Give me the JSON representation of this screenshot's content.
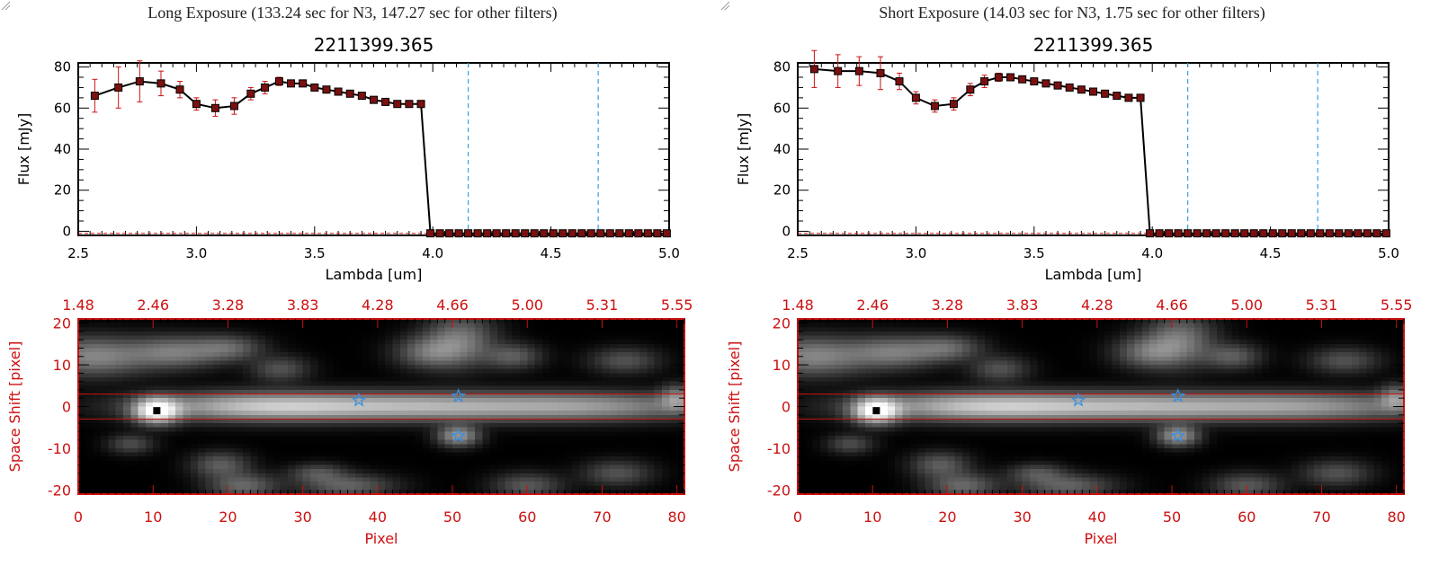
{
  "chart_data": [
    {
      "panel_title": "Long Exposure (133.24 sec for N3, 147.27 sec for other filters)",
      "spectrum": {
        "type": "line",
        "title": "2211399.365",
        "xlabel": "Lambda [um]",
        "ylabel": "Flux [mJy]",
        "xlim": [
          2.5,
          5.0
        ],
        "ylim": [
          -2,
          82
        ],
        "x_ticks": [
          "2.5",
          "3.0",
          "3.5",
          "4.0",
          "4.5",
          "5.0"
        ],
        "y_ticks": [
          "0",
          "20",
          "40",
          "60",
          "80"
        ],
        "vlines": [
          4.15,
          4.7
        ],
        "series": [
          {
            "x": [
              2.57,
              2.67,
              2.76,
              2.85,
              2.93,
              3.0,
              3.08,
              3.16,
              3.23,
              3.29,
              3.35,
              3.4,
              3.45,
              3.5,
              3.55,
              3.6,
              3.65,
              3.7,
              3.75,
              3.8,
              3.85,
              3.9,
              3.95,
              3.99,
              4.03,
              4.07,
              4.11,
              4.15,
              4.19,
              4.23,
              4.27,
              4.31,
              4.35,
              4.39,
              4.43,
              4.47,
              4.51,
              4.55,
              4.59,
              4.63,
              4.67,
              4.71,
              4.75,
              4.79,
              4.83,
              4.87,
              4.91,
              4.95,
              4.99
            ],
            "y": [
              66,
              70,
              73,
              72,
              69,
              62,
              60,
              61,
              67,
              70,
              73,
              72,
              72,
              70,
              69,
              68,
              67,
              66,
              64,
              63,
              62,
              62,
              62,
              -1,
              -1,
              -1,
              -1,
              -1,
              -1,
              -1,
              -1,
              -1,
              -1,
              -1,
              -1,
              -1,
              -1,
              -1,
              -1,
              -1,
              -1,
              -1,
              -1,
              -1,
              -1,
              -1,
              -1,
              -1,
              -1
            ],
            "err": [
              8,
              10,
              10,
              6,
              4,
              3,
              4,
              4,
              3,
              3,
              2,
              1,
              1,
              1,
              1,
              1,
              1,
              1,
              1,
              1,
              1,
              1,
              1,
              0,
              0,
              0,
              0,
              0,
              0,
              0,
              0,
              0,
              0,
              0,
              0,
              0,
              0,
              0,
              0,
              0,
              0,
              0,
              0,
              0,
              0,
              0,
              0,
              0,
              0
            ]
          }
        ]
      },
      "image": {
        "type": "heatmap",
        "xlabel": "Pixel",
        "ylabel": "Space Shift [pixel]",
        "xlim": [
          0,
          81
        ],
        "ylim": [
          -21,
          21
        ],
        "x_ticks": [
          "0",
          "10",
          "20",
          "30",
          "40",
          "50",
          "60",
          "70",
          "80"
        ],
        "y_ticks": [
          "-20",
          "-10",
          "0",
          "10",
          "20"
        ],
        "top_ticks": [
          "1.48",
          "2.46",
          "3.28",
          "3.83",
          "4.28",
          "4.66",
          "5.00",
          "5.31",
          "5.55"
        ],
        "hlines": [
          3,
          -3
        ],
        "stars": [
          [
            37.5,
            1.5
          ],
          [
            50.8,
            2.5
          ],
          [
            50.8,
            -7
          ]
        ],
        "center": [
          10.5,
          -1
        ]
      }
    },
    {
      "panel_title": "Short Exposure (14.03 sec for N3, 1.75 sec for other filters)",
      "spectrum": {
        "type": "line",
        "title": "2211399.365",
        "xlabel": "Lambda [um]",
        "ylabel": "Flux [mJy]",
        "xlim": [
          2.5,
          5.0
        ],
        "ylim": [
          -2,
          82
        ],
        "x_ticks": [
          "2.5",
          "3.0",
          "3.5",
          "4.0",
          "4.5",
          "5.0"
        ],
        "y_ticks": [
          "0",
          "20",
          "40",
          "60",
          "80"
        ],
        "vlines": [
          4.15,
          4.7
        ],
        "series": [
          {
            "x": [
              2.57,
              2.67,
              2.76,
              2.85,
              2.93,
              3.0,
              3.08,
              3.16,
              3.23,
              3.29,
              3.35,
              3.4,
              3.45,
              3.5,
              3.55,
              3.6,
              3.65,
              3.7,
              3.75,
              3.8,
              3.85,
              3.9,
              3.95,
              3.99,
              4.03,
              4.07,
              4.11,
              4.15,
              4.19,
              4.23,
              4.27,
              4.31,
              4.35,
              4.39,
              4.43,
              4.47,
              4.51,
              4.55,
              4.59,
              4.63,
              4.67,
              4.71,
              4.75,
              4.79,
              4.83,
              4.87,
              4.91,
              4.95,
              4.99
            ],
            "y": [
              79,
              78,
              78,
              77,
              73,
              65,
              61,
              62,
              69,
              73,
              75,
              75,
              74,
              73,
              72,
              71,
              70,
              69,
              68,
              67,
              66,
              65,
              65,
              -1,
              -1,
              -1,
              -1,
              -1,
              -1,
              -1,
              -1,
              -1,
              -1,
              -1,
              -1,
              -1,
              -1,
              -1,
              -1,
              -1,
              -1,
              -1,
              -1,
              -1,
              -1,
              -1,
              -1,
              -1,
              -1
            ],
            "err": [
              9,
              8,
              7,
              8,
              4,
              3,
              3,
              3,
              3,
              3,
              2,
              1,
              1,
              1,
              1,
              1,
              1,
              1,
              1,
              1,
              1,
              1,
              1,
              0,
              0,
              0,
              0,
              0,
              0,
              0,
              0,
              0,
              0,
              0,
              0,
              0,
              0,
              0,
              0,
              0,
              0,
              0,
              0,
              0,
              0,
              0,
              0,
              0,
              0
            ]
          }
        ]
      },
      "image": {
        "type": "heatmap",
        "xlabel": "Pixel",
        "ylabel": "Space Shift [pixel]",
        "xlim": [
          0,
          81
        ],
        "ylim": [
          -21,
          21
        ],
        "x_ticks": [
          "0",
          "10",
          "20",
          "30",
          "40",
          "50",
          "60",
          "70",
          "80"
        ],
        "y_ticks": [
          "-20",
          "-10",
          "0",
          "10",
          "20"
        ],
        "top_ticks": [
          "1.48",
          "2.46",
          "3.28",
          "3.83",
          "4.28",
          "4.66",
          "5.00",
          "5.31",
          "5.55"
        ],
        "hlines": [
          3,
          -3
        ],
        "stars": [
          [
            37.5,
            1.5
          ],
          [
            50.8,
            2.5
          ],
          [
            50.8,
            -7
          ]
        ],
        "center": [
          10.5,
          -1
        ]
      }
    }
  ],
  "colors": {
    "axis": "#000000",
    "accent": "#cc1111",
    "marker": "#7a1010",
    "vline": "#3aa0e0",
    "star": "#3a8fe0"
  }
}
